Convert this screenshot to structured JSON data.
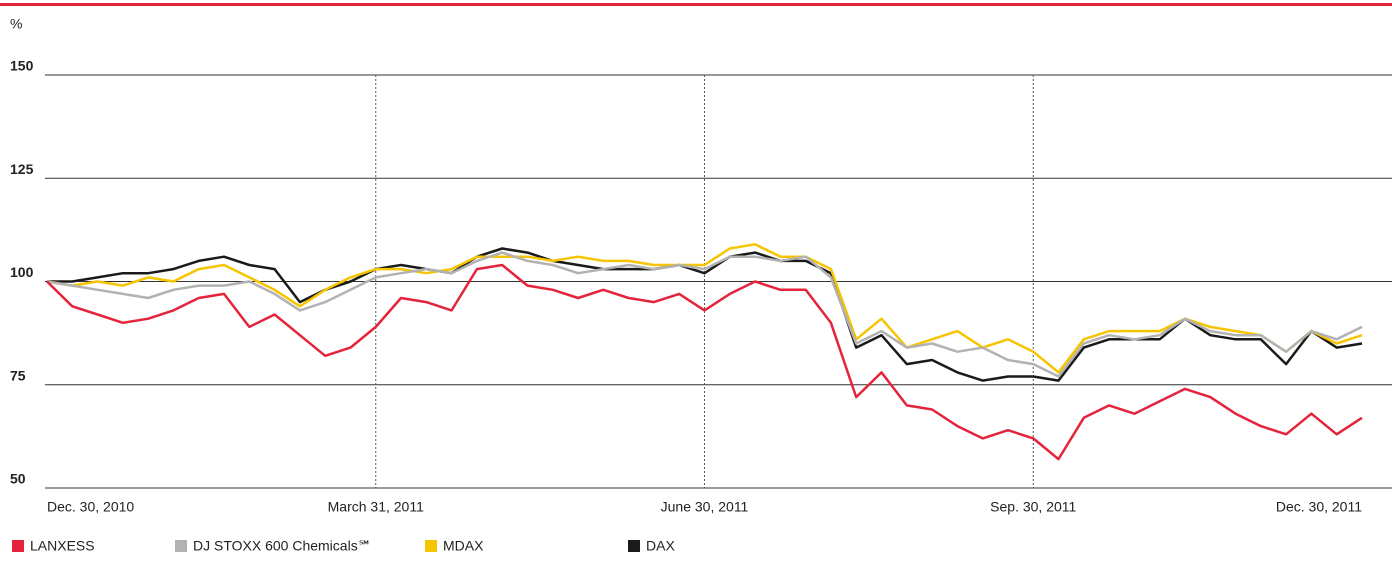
{
  "chart_data": {
    "type": "line",
    "y_unit": "%",
    "categories": [
      "Dec. 30, 2010",
      null,
      null,
      null,
      null,
      null,
      null,
      null,
      null,
      null,
      null,
      null,
      null,
      "March 31, 2011",
      null,
      null,
      null,
      null,
      null,
      null,
      null,
      null,
      null,
      null,
      null,
      null,
      "June 30, 2011",
      null,
      null,
      null,
      null,
      null,
      null,
      null,
      null,
      null,
      null,
      null,
      null,
      "Sep. 30, 2011",
      null,
      null,
      null,
      null,
      null,
      null,
      null,
      null,
      null,
      null,
      null,
      null,
      "Dec. 30, 2011"
    ],
    "series": [
      {
        "name": "LANXESS",
        "color": "#e3243b",
        "values": [
          100,
          94,
          92,
          90,
          91,
          93,
          96,
          97,
          89,
          92,
          87,
          82,
          84,
          89,
          96,
          95,
          93,
          103,
          104,
          99,
          98,
          96,
          98,
          96,
          95,
          97,
          93,
          97,
          100,
          98,
          98,
          90,
          72,
          78,
          70,
          69,
          65,
          62,
          64,
          62,
          57,
          67,
          70,
          68,
          71,
          74,
          72,
          68,
          65,
          63,
          68,
          63,
          67
        ]
      },
      {
        "name": "DJ STOXX 600 Chemicals℠",
        "color": "#b2b2b2",
        "values": [
          100,
          99,
          98,
          97,
          96,
          98,
          99,
          99,
          100,
          97,
          93,
          95,
          98,
          101,
          102,
          103,
          102,
          105,
          107,
          105,
          104,
          102,
          103,
          104,
          103,
          104,
          103,
          106,
          106,
          105,
          106,
          101,
          85,
          88,
          84,
          85,
          83,
          84,
          81,
          80,
          77,
          85,
          87,
          86,
          87,
          91,
          88,
          87,
          87,
          83,
          88,
          86,
          89
        ]
      },
      {
        "name": "MDAX",
        "color": "#f6c400",
        "values": [
          100,
          99,
          100,
          99,
          101,
          100,
          103,
          104,
          101,
          98,
          94,
          98,
          101,
          103,
          103,
          102,
          103,
          106,
          106,
          106,
          105,
          106,
          105,
          105,
          104,
          104,
          104,
          108,
          109,
          106,
          106,
          103,
          86,
          91,
          84,
          86,
          88,
          84,
          86,
          83,
          78,
          86,
          88,
          88,
          88,
          91,
          89,
          88,
          87,
          83,
          88,
          85,
          87
        ]
      },
      {
        "name": "DAX",
        "color": "#1a1a1a",
        "values": [
          100,
          100,
          101,
          102,
          102,
          103,
          105,
          106,
          104,
          103,
          95,
          98,
          100,
          103,
          104,
          103,
          102,
          106,
          108,
          107,
          105,
          104,
          103,
          103,
          103,
          104,
          102,
          106,
          107,
          105,
          105,
          102,
          84,
          87,
          80,
          81,
          78,
          76,
          77,
          77,
          76,
          84,
          86,
          86,
          86,
          91,
          87,
          86,
          86,
          80,
          88,
          84,
          85
        ]
      }
    ],
    "ylim": [
      50,
      150
    ],
    "yticks": [
      50,
      75,
      100,
      125,
      150
    ],
    "grid": true
  }
}
